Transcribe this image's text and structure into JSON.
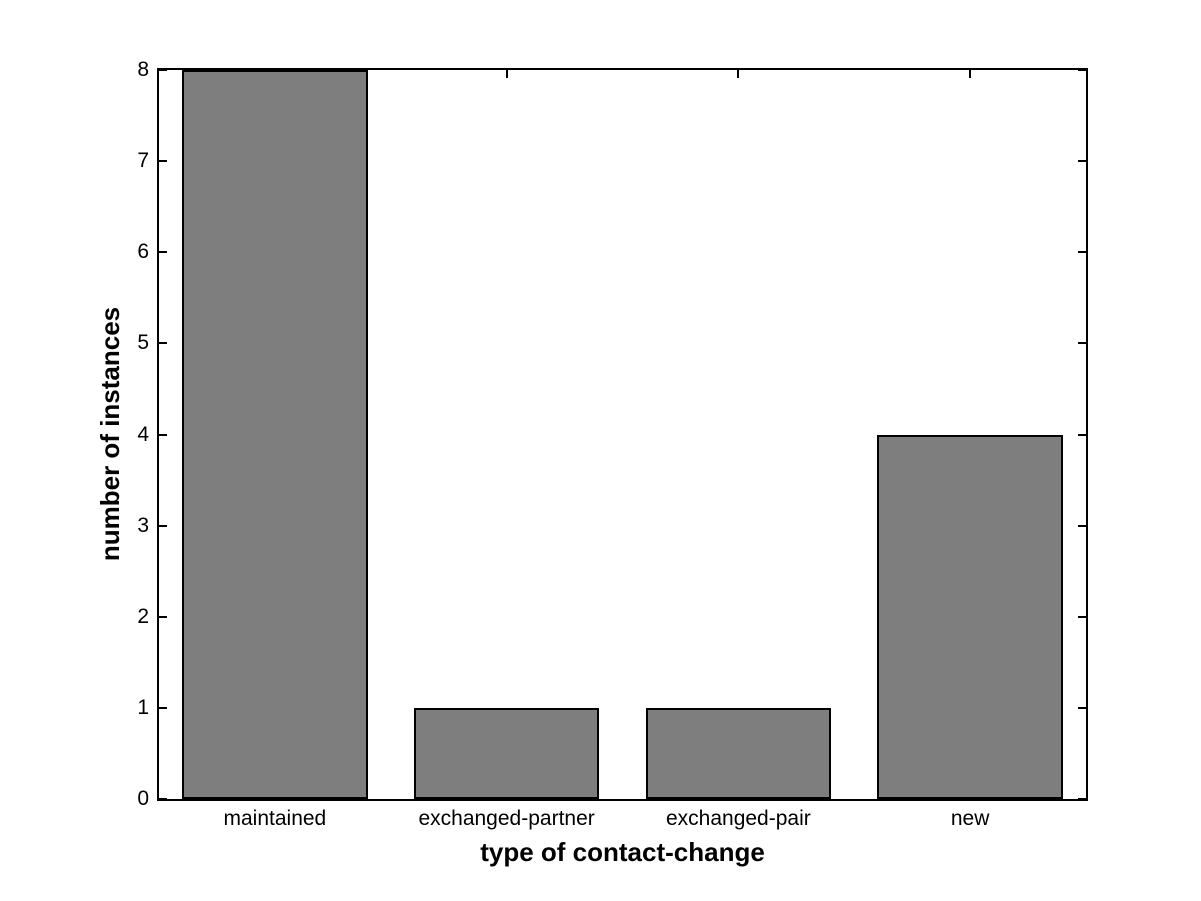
{
  "chart_data": {
    "type": "bar",
    "categories": [
      "maintained",
      "exchanged-partner",
      "exchanged-pair",
      "new"
    ],
    "values": [
      8,
      1,
      1,
      4
    ],
    "title": "",
    "xlabel": "type of contact-change",
    "ylabel": "number of instances",
    "ylim": [
      0,
      8
    ],
    "yticks": [
      0,
      1,
      2,
      3,
      4,
      5,
      6,
      7,
      8
    ],
    "bar_width_fraction": 0.8,
    "bar_color": "#7E7E7E",
    "bar_edge_color": "#000000",
    "axis_color": "#000000",
    "background_color": "#ffffff",
    "grid": false,
    "legend": "none"
  }
}
